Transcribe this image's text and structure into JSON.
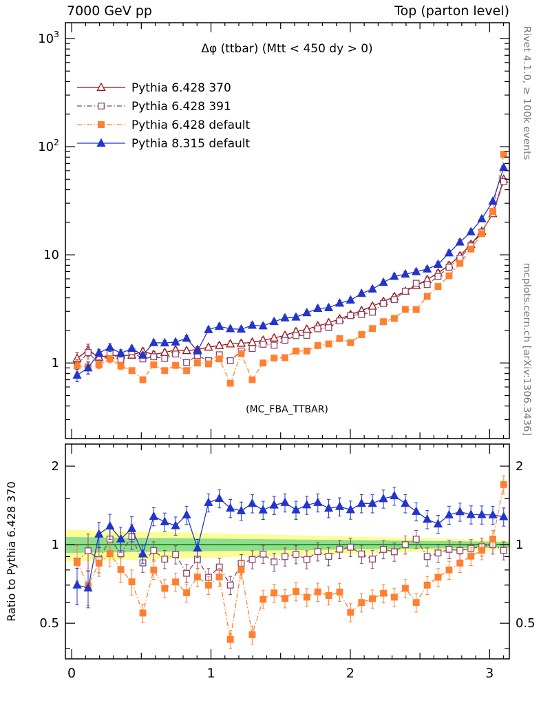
{
  "header": {
    "left": "7000 GeV pp",
    "right": "Top (parton level)"
  },
  "plot_title": "Δφ (ttbar) (Mtt < 450 dy > 0)",
  "watermark": "(MC_FBA_TTBAR)",
  "side_labels": {
    "top_right": "Rivet 4.1.0, ≥ 100k events",
    "bottom_right": "mcplots.cern.ch [arXiv:1306.3436]"
  },
  "ratio_ylabel": "Ratio to Pythia 6.428 370",
  "chart_data": {
    "type": "line",
    "title": "Δφ (ttbar) (Mtt < 450 dy > 0)",
    "xlim": [
      -0.045,
      3.1416
    ],
    "main_ylim": [
      0.2,
      1400
    ],
    "ratio_ylim": [
      0.365,
      2.43
    ],
    "xticks": [
      0,
      1,
      2,
      3
    ],
    "main_yticks": [
      {
        "v": 1,
        "t": "1"
      },
      {
        "v": 10,
        "t": "10"
      },
      {
        "v": 100,
        "t": "10",
        "e": "2"
      },
      {
        "v": 1000,
        "t": "10",
        "e": "3"
      }
    ],
    "ratio_yticks": [
      0.5,
      1,
      2
    ],
    "ratio_yticks_minor": [
      0.4,
      0.6,
      0.7,
      0.8,
      0.9,
      1.5
    ],
    "ratio_reference": "Pythia 6.428 370",
    "legend_position": "top-left",
    "bands": {
      "yellow_color": "#fdfd96",
      "green_color": "#8fdd8f",
      "line_color": "#008000",
      "yellow_low": [
        0.86,
        0.96
      ],
      "yellow_high": [
        1.14,
        1.04
      ],
      "green_low": [
        0.93,
        0.975
      ],
      "green_high": [
        1.07,
        1.025
      ]
    },
    "x": [
      0.039,
      0.118,
      0.196,
      0.275,
      0.353,
      0.432,
      0.511,
      0.589,
      0.668,
      0.746,
      0.825,
      0.903,
      0.982,
      1.06,
      1.139,
      1.217,
      1.296,
      1.374,
      1.453,
      1.531,
      1.61,
      1.688,
      1.767,
      1.845,
      1.924,
      2.002,
      2.081,
      2.159,
      2.238,
      2.316,
      2.395,
      2.473,
      2.552,
      2.63,
      2.709,
      2.787,
      2.866,
      2.944,
      3.023,
      3.101
    ],
    "series": [
      {
        "name": "Pythia 6.428 370",
        "color": "#991111",
        "marker": "triangle-open",
        "line": "solid",
        "values": [
          1.1,
          1.32,
          1.13,
          1.18,
          1.17,
          1.18,
          1.28,
          1.2,
          1.25,
          1.32,
          1.3,
          1.33,
          1.4,
          1.45,
          1.5,
          1.52,
          1.55,
          1.62,
          1.7,
          1.8,
          1.95,
          2.05,
          2.2,
          2.35,
          2.55,
          2.8,
          3.05,
          3.35,
          3.7,
          4.1,
          4.6,
          5.2,
          5.9,
          6.8,
          8.0,
          9.8,
          12.5,
          16.5,
          24.0,
          50.0
        ]
      },
      {
        "name": "Pythia 6.428 391",
        "color": "#8b4566",
        "marker": "square-open",
        "line": "dashdot",
        "values": [
          0.95,
          1.25,
          0.99,
          1.24,
          1.08,
          1.27,
          1.09,
          1.14,
          1.1,
          1.21,
          1.01,
          1.17,
          1.05,
          1.19,
          1.05,
          1.29,
          1.36,
          1.49,
          1.46,
          1.62,
          1.79,
          1.8,
          2.07,
          2.12,
          2.45,
          2.74,
          2.81,
          2.95,
          3.55,
          3.85,
          4.6,
          5.46,
          5.31,
          6.32,
          7.68,
          9.31,
          12.1,
          16.2,
          24.0,
          47.5
        ]
      },
      {
        "name": "Pythia 6.428 default",
        "color": "#ff8030",
        "marker": "square-filled",
        "line": "dashdot",
        "values": [
          0.94,
          0.92,
          0.96,
          1.09,
          0.94,
          0.85,
          0.7,
          0.96,
          0.85,
          0.95,
          0.85,
          1.0,
          0.98,
          1.09,
          0.65,
          1.22,
          0.7,
          1.0,
          1.11,
          1.12,
          1.29,
          1.29,
          1.45,
          1.5,
          1.68,
          1.54,
          1.83,
          2.08,
          2.41,
          2.58,
          3.13,
          3.12,
          4.13,
          5.1,
          6.4,
          8.33,
          11.3,
          15.7,
          25.2,
          85.0
        ]
      },
      {
        "name": "Pythia 8.315 default",
        "color": "#2235cc",
        "marker": "triangle-filled",
        "line": "solid",
        "values": [
          0.77,
          0.9,
          1.24,
          1.39,
          1.23,
          1.36,
          1.18,
          1.54,
          1.53,
          1.56,
          1.69,
          1.29,
          2.03,
          2.18,
          2.07,
          2.05,
          2.23,
          2.2,
          2.41,
          2.61,
          2.65,
          2.91,
          3.19,
          3.24,
          3.57,
          3.81,
          4.39,
          4.82,
          5.55,
          6.31,
          6.62,
          6.97,
          7.38,
          8.16,
          10.4,
          13.1,
          16.3,
          21.5,
          31.2,
          64.0
        ]
      }
    ]
  }
}
